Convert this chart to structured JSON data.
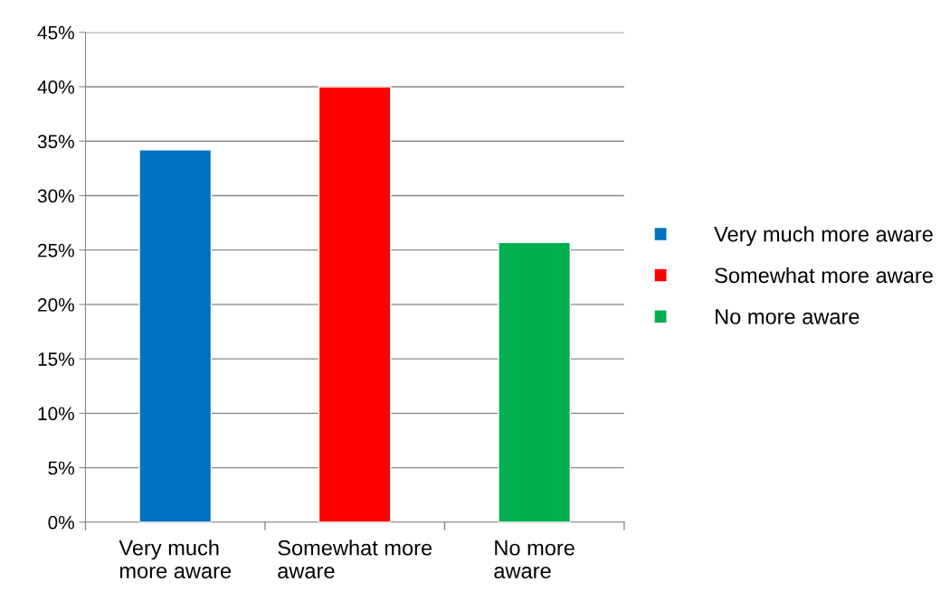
{
  "chart_data": {
    "type": "bar",
    "categories": [
      "Very much more aware",
      "Somewhat more aware",
      "No more aware"
    ],
    "series": [
      {
        "name": "Very much more aware",
        "color": "#0070c0",
        "values": [
          34.2,
          null,
          null
        ]
      },
      {
        "name": "Somewhat more aware",
        "color": "#ff0000",
        "values": [
          null,
          40,
          null
        ]
      },
      {
        "name": "No more aware",
        "color": "#00b050",
        "values": [
          null,
          null,
          25.7
        ]
      }
    ],
    "ylim": [
      0,
      45
    ],
    "yticks": [
      {
        "value": 0,
        "label": "0%"
      },
      {
        "value": 5,
        "label": "5%"
      },
      {
        "value": 10,
        "label": "10%"
      },
      {
        "value": 15,
        "label": "15%"
      },
      {
        "value": 20,
        "label": "20%"
      },
      {
        "value": 25,
        "label": "25%"
      },
      {
        "value": 30,
        "label": "30%"
      },
      {
        "value": 35,
        "label": "35%"
      },
      {
        "value": 40,
        "label": "40%"
      },
      {
        "value": 45,
        "label": "45%"
      }
    ],
    "grid": "y",
    "legend": "right"
  }
}
